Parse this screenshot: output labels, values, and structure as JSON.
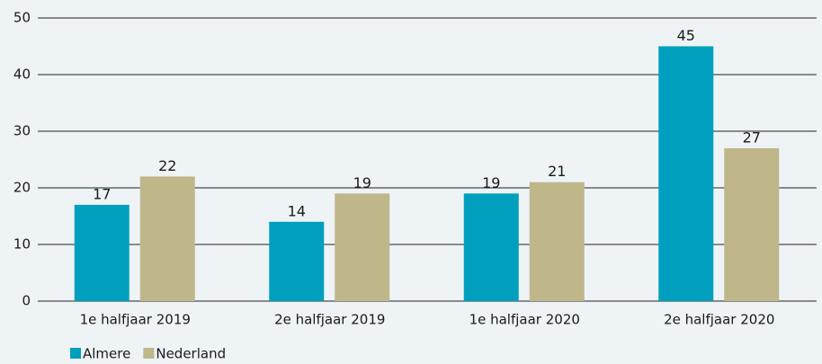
{
  "chart_data": {
    "type": "bar",
    "categories": [
      "1e halfjaar 2019",
      "2e halfjaar 2019",
      "1e halfjaar 2020",
      "2e halfjaar 2020"
    ],
    "series": [
      {
        "name": "Almere",
        "color": "#009fbd",
        "values": [
          17,
          14,
          19,
          45
        ]
      },
      {
        "name": "Nederland",
        "color": "#bfb78a",
        "values": [
          22,
          19,
          21,
          27
        ]
      }
    ],
    "ylim": [
      0,
      50
    ],
    "yticks": [
      0,
      10,
      20,
      30,
      40,
      50
    ],
    "grid": true,
    "legend": "bottom"
  }
}
